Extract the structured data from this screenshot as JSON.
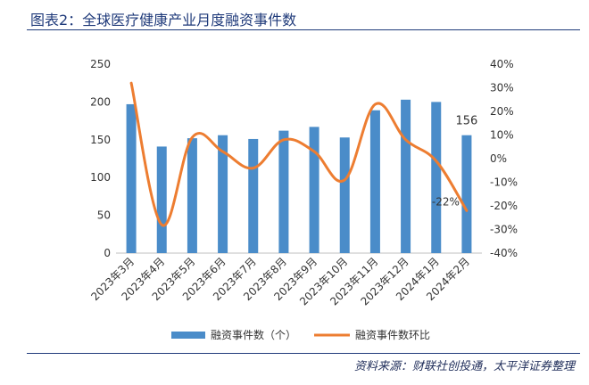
{
  "header": {
    "title": "图表2：全球医疗健康产业月度融资事件数"
  },
  "footer": {
    "source": "资料来源：财联社创投通，太平洋证券整理"
  },
  "chart_data": {
    "type": "bar",
    "categories": [
      "2023年3月",
      "2023年4月",
      "2023年5月",
      "2023年6月",
      "2023年7月",
      "2023年8月",
      "2023年9月",
      "2023年10月",
      "2023年11月",
      "2023年12月",
      "2024年1月",
      "2024年2月"
    ],
    "series": [
      {
        "name": "融资事件数（个）",
        "type": "bar",
        "axis": "left",
        "color": "#4a8cc9",
        "values": [
          197,
          141,
          152,
          156,
          151,
          162,
          167,
          153,
          189,
          203,
          200,
          156
        ]
      },
      {
        "name": "融资事件数环比",
        "type": "line",
        "axis": "right",
        "color": "#ed7d31",
        "values": [
          32,
          -28,
          9,
          3,
          -4,
          8,
          3,
          -9,
          23,
          8,
          -1,
          -22
        ]
      }
    ],
    "left_axis": {
      "min": 0,
      "max": 250,
      "ticks": [
        "0",
        "50",
        "100",
        "150",
        "200",
        "250"
      ]
    },
    "right_axis": {
      "min": -40,
      "max": 40,
      "ticks": [
        "-40%",
        "-30%",
        "-20%",
        "-10%",
        "0%",
        "10%",
        "20%",
        "30%",
        "40%"
      ]
    },
    "annotations": [
      {
        "series": 0,
        "index": 11,
        "text": "156"
      },
      {
        "series": 1,
        "index": 11,
        "text": "-22%"
      }
    ],
    "legend_position": "bottom",
    "grid": false
  }
}
